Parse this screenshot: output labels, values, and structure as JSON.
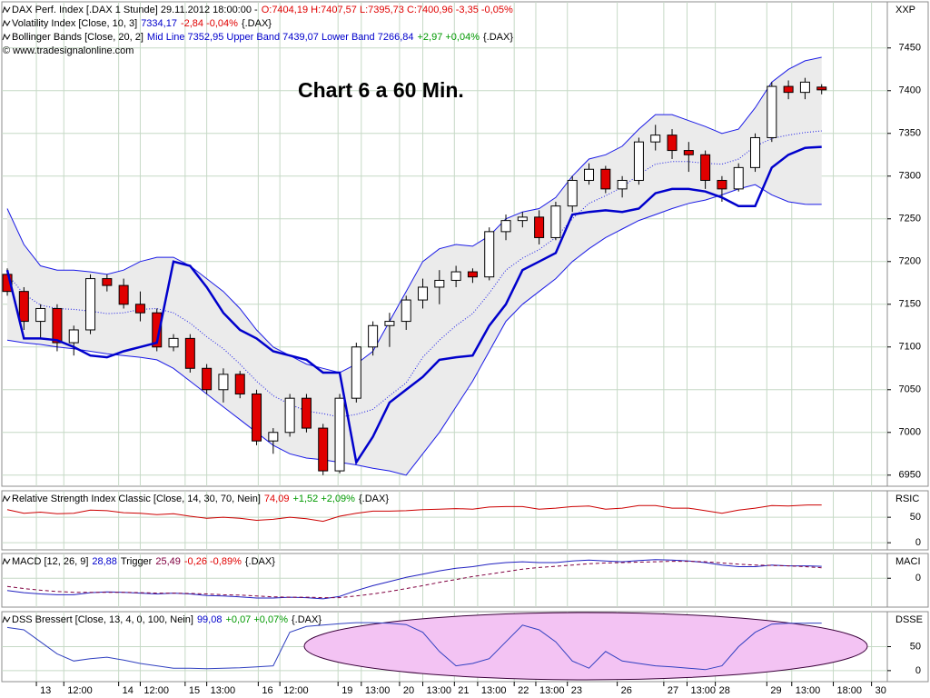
{
  "chart_data": [
    {
      "type": "candlestick",
      "title": "DAX Perf. Index [.DAX  1 Stunde] 29.11.2012 18:00:00 -",
      "quote": "O:7404,19 H:7407,57 L:7395,73 C:7400,96 -3,35 -0,05%",
      "quote_color": "#e00000",
      "annotation": "Chart 6 a 60 Min.",
      "copyright": "© www.tradesignalonline.com",
      "axis_label": "XXP",
      "x": [
        0,
        1,
        2,
        3,
        4,
        5,
        6,
        7,
        8,
        9,
        10,
        11,
        12,
        13,
        14,
        15,
        16,
        17,
        18,
        19,
        20,
        21,
        22,
        23,
        24,
        25,
        26,
        27,
        28,
        29,
        30,
        31,
        32,
        33,
        34,
        35,
        36,
        37,
        38,
        39,
        40,
        41,
        42,
        43,
        44,
        45,
        46,
        47,
        48,
        49
      ],
      "open": [
        7185,
        7165,
        7130,
        7145,
        7105,
        7120,
        7180,
        7172,
        7150,
        7140,
        7100,
        7110,
        7075,
        7050,
        7068,
        7045,
        6990,
        7000,
        7040,
        7005,
        6955,
        7040,
        7100,
        7125,
        7130,
        7155,
        7170,
        7178,
        7188,
        7182,
        7235,
        7248,
        7252,
        7228,
        7265,
        7295,
        7308,
        7285,
        7295,
        7340,
        7348,
        7330,
        7325,
        7295,
        7285,
        7310,
        7345,
        7405,
        7398,
        7404.19
      ],
      "high": [
        7192,
        7170,
        7150,
        7150,
        7125,
        7185,
        7185,
        7180,
        7165,
        7145,
        7115,
        7115,
        7080,
        7075,
        7072,
        7050,
        7005,
        7045,
        7045,
        7010,
        7045,
        7105,
        7130,
        7140,
        7160,
        7180,
        7190,
        7195,
        7192,
        7240,
        7255,
        7258,
        7260,
        7270,
        7300,
        7315,
        7312,
        7300,
        7345,
        7360,
        7355,
        7340,
        7330,
        7300,
        7315,
        7350,
        7410,
        7412,
        7415,
        7407.57
      ],
      "low": [
        7160,
        7120,
        7110,
        7095,
        7090,
        7115,
        7165,
        7145,
        7130,
        7095,
        7095,
        7070,
        7045,
        7035,
        7040,
        6985,
        6975,
        6995,
        7000,
        6950,
        6952,
        7035,
        7090,
        7100,
        7120,
        7145,
        7150,
        7170,
        7175,
        7178,
        7225,
        7240,
        7220,
        7225,
        7258,
        7290,
        7280,
        7275,
        7290,
        7330,
        7320,
        7305,
        7285,
        7270,
        7282,
        7305,
        7340,
        7390,
        7390,
        7395.73
      ],
      "close": [
        7165,
        7130,
        7145,
        7105,
        7120,
        7180,
        7172,
        7150,
        7140,
        7100,
        7110,
        7075,
        7050,
        7068,
        7045,
        6990,
        7000,
        7040,
        7005,
        6955,
        7040,
        7100,
        7125,
        7130,
        7155,
        7170,
        7178,
        7188,
        7182,
        7235,
        7248,
        7252,
        7228,
        7265,
        7295,
        7308,
        7285,
        7295,
        7340,
        7348,
        7330,
        7325,
        7295,
        7285,
        7310,
        7345,
        7405,
        7398,
        7410,
        7400.96
      ],
      "up_color": "#ffffff",
      "down_color": "#e00000",
      "series": [
        {
          "name": "Volatility Index [Close, 10, 3]",
          "color": "#0000cc",
          "values": [
            7190,
            7110,
            7110,
            7108,
            7100,
            7090,
            7088,
            7095,
            7100,
            7105,
            7200,
            7195,
            7170,
            7140,
            7120,
            7110,
            7095,
            7090,
            7085,
            7070,
            7070,
            6965,
            6995,
            7035,
            7050,
            7065,
            7085,
            7088,
            7090,
            7125,
            7150,
            7190,
            7200,
            7210,
            7255,
            7258,
            7260,
            7258,
            7262,
            7280,
            7285,
            7285,
            7282,
            7275,
            7265,
            7265,
            7310,
            7325,
            7333,
            7334.17
          ],
          "readout": [
            {
              "text": "7334,17",
              "color": "#0000cc"
            },
            {
              "text": "-2,84 -0,04%",
              "color": "#e00000"
            },
            {
              "text": "{.DAX}",
              "color": "#000000"
            }
          ]
        }
      ],
      "bands": {
        "name": "Bollinger Bands [Close, 20, 2]",
        "color": "#1a1ae6",
        "fill": "#ebebeb",
        "mid": [
          7185,
          7162,
          7149,
          7145,
          7144,
          7142,
          7139,
          7140,
          7144,
          7145,
          7140,
          7128,
          7112,
          7098,
          7080,
          7060,
          7043,
          7033,
          7025,
          7022,
          7018,
          7021,
          7027,
          7043,
          7058,
          7088,
          7108,
          7125,
          7139,
          7163,
          7190,
          7204,
          7214,
          7228,
          7250,
          7268,
          7277,
          7287,
          7302,
          7314,
          7317,
          7317,
          7315,
          7314,
          7320,
          7335,
          7344,
          7348,
          7351,
          7352.95
        ],
        "upper": [
          7262,
          7220,
          7195,
          7190,
          7190,
          7188,
          7185,
          7190,
          7200,
          7205,
          7205,
          7195,
          7180,
          7165,
          7145,
          7120,
          7100,
          7090,
          7080,
          7075,
          7070,
          7080,
          7095,
          7130,
          7165,
          7200,
          7215,
          7220,
          7218,
          7230,
          7250,
          7258,
          7262,
          7275,
          7300,
          7320,
          7325,
          7335,
          7355,
          7372,
          7372,
          7365,
          7358,
          7350,
          7355,
          7380,
          7410,
          7425,
          7435,
          7439.07
        ],
        "lower": [
          7108,
          7105,
          7103,
          7100,
          7098,
          7095,
          7092,
          7090,
          7088,
          7085,
          7075,
          7060,
          7045,
          7030,
          7015,
          7000,
          6985,
          6975,
          6970,
          6968,
          6965,
          6962,
          6958,
          6955,
          6950,
          6975,
          7000,
          7030,
          7060,
          7095,
          7130,
          7150,
          7165,
          7180,
          7200,
          7215,
          7228,
          7238,
          7248,
          7255,
          7262,
          7268,
          7272,
          7278,
          7285,
          7290,
          7278,
          7270,
          7267,
          7266.84
        ],
        "readout": [
          {
            "text": "Mid Line 7352,95 Upper Band 7439,07 Lower Band 7266,84",
            "color": "#0000cc"
          },
          {
            "text": "+2,97 +0,04%",
            "color": "#009900"
          },
          {
            "text": "{.DAX}",
            "color": "#000000"
          }
        ]
      },
      "ylim": [
        6937,
        7504
      ],
      "yticks": [
        6950,
        7000,
        7050,
        7100,
        7150,
        7200,
        7250,
        7300,
        7350,
        7400,
        7450
      ],
      "xlim": [
        -0.33,
        52.95
      ],
      "xticks": [
        {
          "value": 1.75,
          "label": "13"
        },
        {
          "value": 3.4,
          "label": "12:00"
        },
        {
          "value": 6.7,
          "label": "14"
        },
        {
          "value": 8.0,
          "label": "12:00"
        },
        {
          "value": 10.7,
          "label": "15"
        },
        {
          "value": 12.0,
          "label": "13:00"
        },
        {
          "value": 15.1,
          "label": "16"
        },
        {
          "value": 16.4,
          "label": "12:00"
        },
        {
          "value": 19.9,
          "label": "19"
        },
        {
          "value": 21.3,
          "label": "13:00"
        },
        {
          "value": 23.6,
          "label": "20"
        },
        {
          "value": 25.0,
          "label": "13:00"
        },
        {
          "value": 26.9,
          "label": "21"
        },
        {
          "value": 28.3,
          "label": "13:00"
        },
        {
          "value": 30.5,
          "label": "22"
        },
        {
          "value": 31.8,
          "label": "13:00"
        },
        {
          "value": 33.7,
          "label": "23"
        },
        {
          "value": 36.7,
          "label": "26"
        },
        {
          "value": 39.5,
          "label": "27"
        },
        {
          "value": 40.9,
          "label": "13:00"
        },
        {
          "value": 42.6,
          "label": "28"
        },
        {
          "value": 45.7,
          "label": "29"
        },
        {
          "value": 47.2,
          "label": "13:00"
        },
        {
          "value": 49.7,
          "label": "18:00"
        },
        {
          "value": 52.0,
          "label": "30"
        }
      ],
      "grid": true
    },
    {
      "type": "line",
      "axis_label": "RSIC",
      "series": [
        {
          "name": "Relative Strength Index Classic [Close, 14, 30, 70, Nein]",
          "color": "#cc0000",
          "values": [
            65,
            58,
            60,
            57,
            58,
            64,
            63,
            59,
            58,
            55,
            57,
            52,
            48,
            50,
            48,
            44,
            46,
            50,
            47,
            42,
            52,
            58,
            62,
            62,
            63,
            65,
            66,
            67,
            66,
            70,
            71,
            71,
            66,
            68,
            71,
            72,
            66,
            68,
            73,
            73,
            68,
            68,
            63,
            58,
            64,
            68,
            73,
            72,
            74,
            74.09
          ],
          "readout": [
            {
              "text": "74,09",
              "color": "#e00000"
            },
            {
              "text": "+1,52 +2,09%",
              "color": "#009900"
            },
            {
              "text": "{.DAX}",
              "color": "#000000"
            }
          ]
        }
      ],
      "ylim": [
        -14,
        102
      ],
      "yticks": [
        0,
        50
      ],
      "grid": true
    },
    {
      "type": "line",
      "axis_label": "MACI",
      "series": [
        {
          "name": "MACD [12, 26, 9]",
          "color": "#2020c0",
          "values": [
            -30,
            -35,
            -38,
            -40,
            -40,
            -35,
            -33,
            -34,
            -36,
            -38,
            -36,
            -38,
            -42,
            -43,
            -45,
            -48,
            -48,
            -46,
            -47,
            -50,
            -44,
            -30,
            -18,
            -8,
            2,
            10,
            18,
            24,
            28,
            34,
            38,
            40,
            38,
            38,
            42,
            44,
            42,
            40,
            43,
            45,
            44,
            42,
            38,
            32,
            28,
            28,
            32,
            30,
            30,
            28.88
          ],
          "readout": [
            {
              "text": "28,88",
              "color": "#0000cc"
            }
          ]
        },
        {
          "name": "Trigger",
          "color": "#800040",
          "dashed": true,
          "values": [
            -20,
            -25,
            -29,
            -32,
            -34,
            -34,
            -34,
            -34,
            -35,
            -36,
            -36,
            -37,
            -38,
            -40,
            -41,
            -43,
            -45,
            -46,
            -46,
            -47,
            -47,
            -43,
            -38,
            -32,
            -25,
            -18,
            -10,
            -3,
            4,
            10,
            16,
            22,
            26,
            29,
            32,
            35,
            37,
            38,
            39,
            40,
            41,
            41,
            40,
            37,
            34,
            32,
            31,
            30,
            28,
            25.49
          ],
          "readout": [
            {
              "text": "25,49",
              "color": "#800040"
            },
            {
              "text": "-0,26 -0,89%",
              "color": "#e00000"
            },
            {
              "text": "{.DAX}",
              "color": "#000000"
            }
          ]
        }
      ],
      "ylim": [
        -70,
        60
      ],
      "yticks": [
        0
      ],
      "grid": true
    },
    {
      "type": "line",
      "axis_label": "DSSE",
      "series": [
        {
          "name": "DSS Bressert [Close, 13, 4, 0, 100, Nein]",
          "color": "#3040c0",
          "values": [
            90,
            85,
            60,
            35,
            20,
            25,
            28,
            22,
            15,
            10,
            5,
            5,
            4,
            5,
            6,
            8,
            10,
            80,
            92,
            95,
            98,
            100,
            100,
            99,
            96,
            80,
            40,
            10,
            15,
            25,
            60,
            95,
            85,
            60,
            20,
            5,
            40,
            20,
            15,
            10,
            8,
            5,
            2,
            10,
            50,
            80,
            97,
            99,
            99,
            99.08
          ],
          "readout": [
            {
              "text": "99,08",
              "color": "#0000cc"
            },
            {
              "text": "+0,07 +0,07%",
              "color": "#009900"
            },
            {
              "text": "{.DAX}",
              "color": "#000000"
            }
          ]
        }
      ],
      "ylim": [
        -23,
        123
      ],
      "yticks": [
        0,
        50
      ],
      "grid": true
    }
  ]
}
